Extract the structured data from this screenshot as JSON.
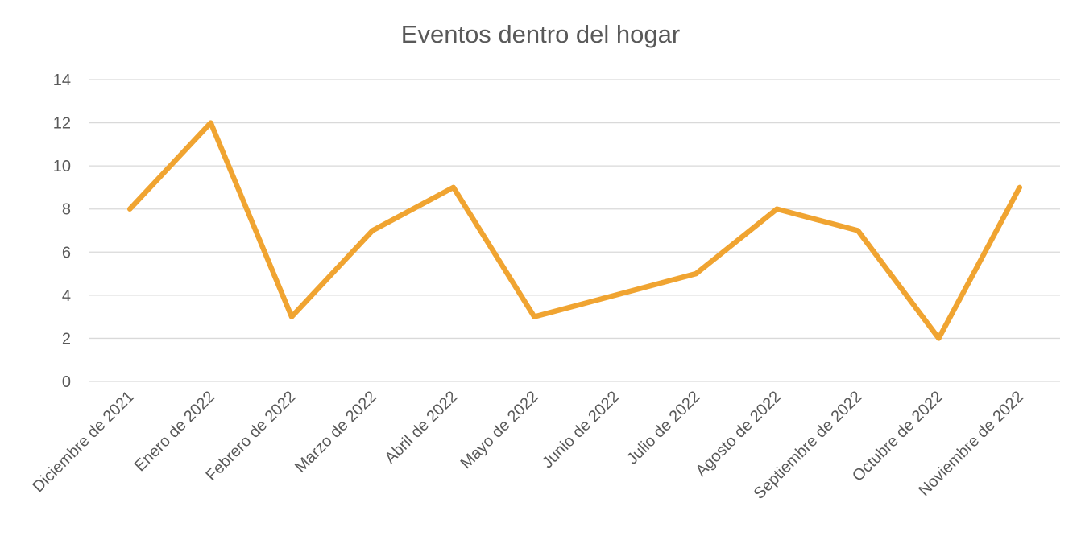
{
  "chart_data": {
    "type": "line",
    "title": "Eventos dentro del hogar",
    "xlabel": "",
    "ylabel": "",
    "categories": [
      "Diciembre de 2021",
      "Enero de 2022",
      "Febrero de 2022",
      "Marzo de 2022",
      "Abril de 2022",
      "Mayo de 2022",
      "Junio de 2022",
      "Julio de 2022",
      "Agosto de 2022",
      "Septiembre de 2022",
      "Octubre de 2022",
      "Noviembre de 2022"
    ],
    "series": [
      {
        "values": [
          8,
          12,
          3,
          7,
          9,
          3,
          4,
          5,
          8,
          7,
          2,
          9
        ],
        "color": "#F0A431"
      }
    ],
    "ylim": [
      0,
      14
    ],
    "yticks": [
      "0",
      "2",
      "4",
      "6",
      "8",
      "10",
      "12",
      "14"
    ],
    "grid": true,
    "legend": "none"
  }
}
